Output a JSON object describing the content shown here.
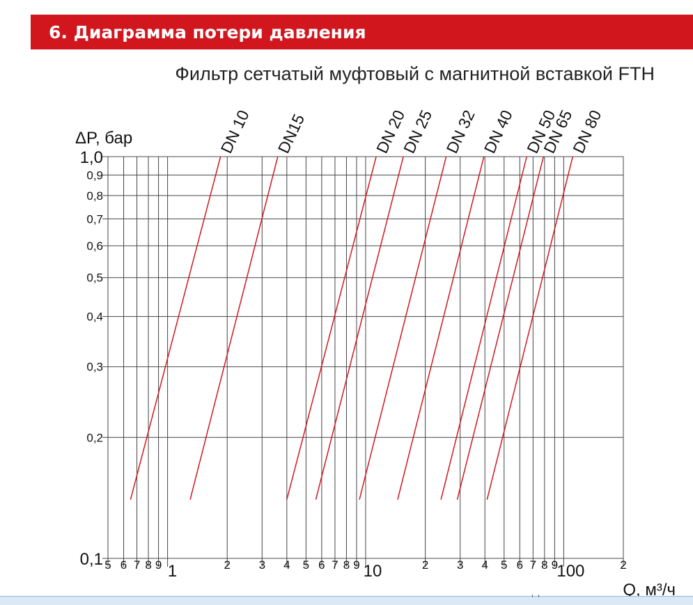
{
  "header": {
    "title": "6. Диаграмма потери давления",
    "accent_color": "#d2161e"
  },
  "subtitle": "Фильтр сетчатый муфтовый с магнитной вставкой FTH",
  "chart_data": {
    "type": "line",
    "title": "",
    "ylabel": "ΔP, бар",
    "xlabel": "Q, м³/ч",
    "x_scale": "log",
    "y_scale": "log",
    "xlim": [
      0.5,
      200
    ],
    "ylim": [
      0.1,
      1.0
    ],
    "grid": true,
    "line_color": "#d2161e",
    "x_ticks": [
      {
        "value": 0.5,
        "label": "5"
      },
      {
        "value": 0.6,
        "label": "6"
      },
      {
        "value": 0.7,
        "label": "7"
      },
      {
        "value": 0.8,
        "label": "8"
      },
      {
        "value": 0.9,
        "label": "9"
      },
      {
        "value": 1,
        "label": "1"
      },
      {
        "value": 2,
        "label": "2"
      },
      {
        "value": 3,
        "label": "3"
      },
      {
        "value": 4,
        "label": "4"
      },
      {
        "value": 5,
        "label": "5"
      },
      {
        "value": 6,
        "label": "6"
      },
      {
        "value": 7,
        "label": "7"
      },
      {
        "value": 8,
        "label": "8"
      },
      {
        "value": 9,
        "label": "9"
      },
      {
        "value": 10,
        "label": "10"
      },
      {
        "value": 20,
        "label": "2"
      },
      {
        "value": 30,
        "label": "3"
      },
      {
        "value": 40,
        "label": "4"
      },
      {
        "value": 50,
        "label": "5"
      },
      {
        "value": 60,
        "label": "6"
      },
      {
        "value": 70,
        "label": "7"
      },
      {
        "value": 80,
        "label": "8"
      },
      {
        "value": 90,
        "label": "9"
      },
      {
        "value": 100,
        "label": "100"
      },
      {
        "value": 200,
        "label": "2"
      }
    ],
    "y_ticks": [
      {
        "value": 0.1,
        "label": "0,1"
      },
      {
        "value": 0.2,
        "label": "0,2"
      },
      {
        "value": 0.3,
        "label": "0,3"
      },
      {
        "value": 0.4,
        "label": "0,4"
      },
      {
        "value": 0.5,
        "label": "0,5"
      },
      {
        "value": 0.6,
        "label": "0,6"
      },
      {
        "value": 0.7,
        "label": "0,7"
      },
      {
        "value": 0.8,
        "label": "0,8"
      },
      {
        "value": 0.9,
        "label": "0,9"
      },
      {
        "value": 1.0,
        "label": "1,0"
      }
    ],
    "series": [
      {
        "name": "DN 10",
        "x": [
          0.65,
          1.85
        ],
        "y": [
          0.14,
          1.0
        ]
      },
      {
        "name": "DN15",
        "x": [
          1.3,
          3.6
        ],
        "y": [
          0.14,
          1.0
        ]
      },
      {
        "name": "DN 20",
        "x": [
          4.0,
          11.3
        ],
        "y": [
          0.14,
          1.0
        ]
      },
      {
        "name": "DN 25",
        "x": [
          5.6,
          15.5
        ],
        "y": [
          0.14,
          1.0
        ]
      },
      {
        "name": "DN 32",
        "x": [
          9.3,
          25.5
        ],
        "y": [
          0.14,
          1.0
        ]
      },
      {
        "name": "DN 40",
        "x": [
          14.5,
          39.5
        ],
        "y": [
          0.14,
          1.0
        ]
      },
      {
        "name": "DN 50",
        "x": [
          24.0,
          65.0
        ],
        "y": [
          0.14,
          1.0
        ]
      },
      {
        "name": "DN 65",
        "x": [
          29.0,
          79.0
        ],
        "y": [
          0.14,
          1.0
        ]
      },
      {
        "name": "DN 80",
        "x": [
          41.0,
          111.0
        ],
        "y": [
          0.14,
          1.0
        ]
      }
    ]
  }
}
